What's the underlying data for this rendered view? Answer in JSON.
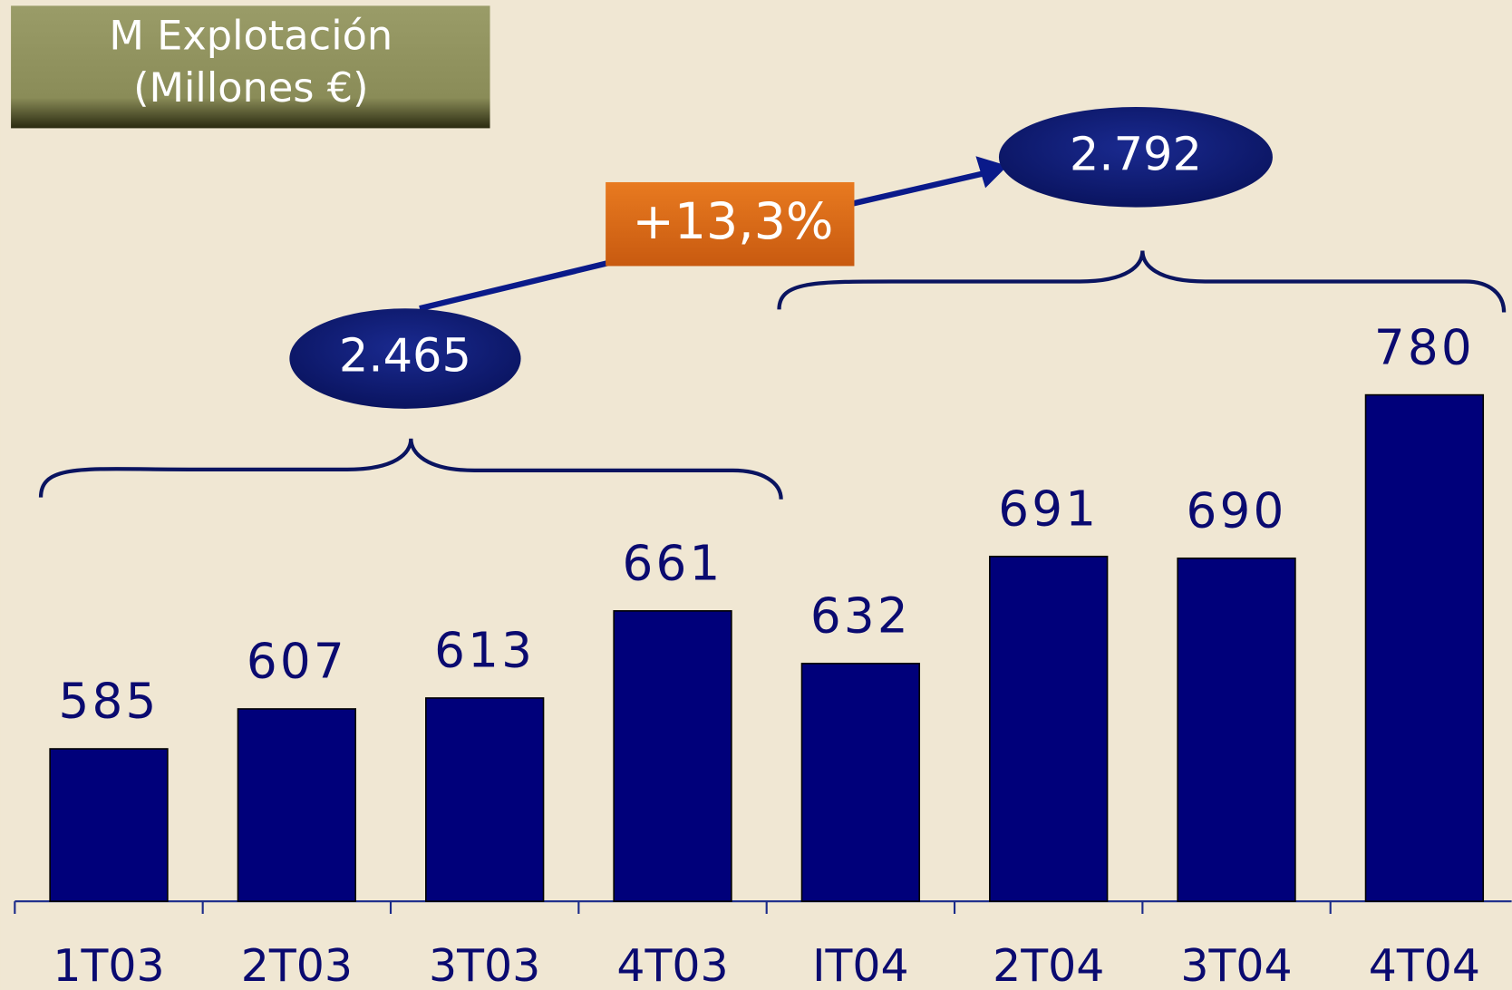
{
  "chart_data": {
    "type": "bar",
    "title": [
      "M Explotación",
      "(Millones €)"
    ],
    "categories": [
      "1T03",
      "2T03",
      "3T03",
      "4T03",
      "IT04",
      "2T04",
      "3T04",
      "4T04"
    ],
    "values": [
      585,
      607,
      613,
      661,
      632,
      691,
      690,
      780
    ],
    "color": "#00007a",
    "ylim": [
      501,
      800
    ],
    "annotations": [
      "2.465",
      "+13,3%",
      "2.792"
    ]
  }
}
